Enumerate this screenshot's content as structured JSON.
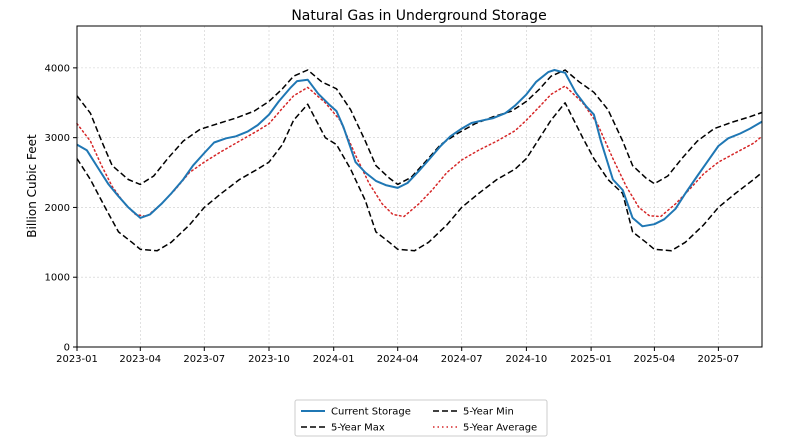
{
  "chart_data": {
    "type": "line",
    "title": "Natural Gas in Underground Storage",
    "xlabel": "",
    "ylabel": "Billion Cubic Feet",
    "ylim": [
      0,
      4600
    ],
    "xlim": [
      "2023-01-01",
      "2025-09-01"
    ],
    "grid": true,
    "legend_position": "bottom-center",
    "y_ticks": [
      0,
      1000,
      2000,
      3000,
      4000
    ],
    "x_ticks": [
      "2023-01",
      "2023-04",
      "2023-07",
      "2023-10",
      "2024-01",
      "2024-04",
      "2024-07",
      "2024-10",
      "2025-01",
      "2025-04",
      "2025-07"
    ],
    "series": [
      {
        "name": "Current Storage",
        "color": "#1f77b4",
        "style": "solid",
        "points": [
          [
            "2023-01-01",
            2900
          ],
          [
            "2023-01-15",
            2820
          ],
          [
            "2023-02-01",
            2550
          ],
          [
            "2023-02-15",
            2330
          ],
          [
            "2023-03-01",
            2160
          ],
          [
            "2023-03-15",
            2000
          ],
          [
            "2023-04-01",
            1850
          ],
          [
            "2023-04-15",
            1900
          ],
          [
            "2023-05-01",
            2050
          ],
          [
            "2023-05-15",
            2200
          ],
          [
            "2023-06-01",
            2400
          ],
          [
            "2023-06-15",
            2600
          ],
          [
            "2023-07-01",
            2780
          ],
          [
            "2023-07-15",
            2930
          ],
          [
            "2023-08-01",
            2990
          ],
          [
            "2023-08-15",
            3020
          ],
          [
            "2023-09-01",
            3090
          ],
          [
            "2023-09-15",
            3180
          ],
          [
            "2023-10-01",
            3330
          ],
          [
            "2023-10-15",
            3520
          ],
          [
            "2023-11-01",
            3720
          ],
          [
            "2023-11-10",
            3810
          ],
          [
            "2023-11-25",
            3830
          ],
          [
            "2023-12-10",
            3630
          ],
          [
            "2023-12-25",
            3480
          ],
          [
            "2024-01-05",
            3380
          ],
          [
            "2024-01-15",
            3150
          ],
          [
            "2024-02-01",
            2650
          ],
          [
            "2024-02-15",
            2500
          ],
          [
            "2024-03-01",
            2380
          ],
          [
            "2024-03-15",
            2320
          ],
          [
            "2024-04-01",
            2280
          ],
          [
            "2024-04-15",
            2350
          ],
          [
            "2024-05-01",
            2520
          ],
          [
            "2024-05-15",
            2680
          ],
          [
            "2024-06-01",
            2880
          ],
          [
            "2024-06-15",
            3020
          ],
          [
            "2024-07-01",
            3130
          ],
          [
            "2024-07-15",
            3210
          ],
          [
            "2024-08-01",
            3250
          ],
          [
            "2024-08-15",
            3280
          ],
          [
            "2024-09-01",
            3350
          ],
          [
            "2024-09-15",
            3460
          ],
          [
            "2024-10-01",
            3620
          ],
          [
            "2024-10-15",
            3800
          ],
          [
            "2024-11-01",
            3940
          ],
          [
            "2024-11-10",
            3970
          ],
          [
            "2024-11-25",
            3930
          ],
          [
            "2024-12-10",
            3650
          ],
          [
            "2024-12-25",
            3450
          ],
          [
            "2025-01-05",
            3330
          ],
          [
            "2025-01-15",
            2950
          ],
          [
            "2025-02-01",
            2400
          ],
          [
            "2025-02-15",
            2250
          ],
          [
            "2025-03-01",
            1850
          ],
          [
            "2025-03-15",
            1730
          ],
          [
            "2025-04-01",
            1760
          ],
          [
            "2025-04-15",
            1830
          ],
          [
            "2025-05-01",
            1980
          ],
          [
            "2025-05-15",
            2200
          ],
          [
            "2025-06-01",
            2450
          ],
          [
            "2025-06-15",
            2650
          ],
          [
            "2025-07-01",
            2880
          ],
          [
            "2025-07-15",
            2990
          ],
          [
            "2025-08-01",
            3060
          ],
          [
            "2025-08-15",
            3130
          ],
          [
            "2025-09-01",
            3230
          ]
        ]
      },
      {
        "name": "5-Year Max",
        "color": "#000000",
        "style": "dashed",
        "points": [
          [
            "2023-01-01",
            3600
          ],
          [
            "2023-01-20",
            3350
          ],
          [
            "2023-02-05",
            2950
          ],
          [
            "2023-02-20",
            2600
          ],
          [
            "2023-03-15",
            2400
          ],
          [
            "2023-04-01",
            2330
          ],
          [
            "2023-04-20",
            2450
          ],
          [
            "2023-05-10",
            2700
          ],
          [
            "2023-06-01",
            2950
          ],
          [
            "2023-06-25",
            3120
          ],
          [
            "2023-07-20",
            3200
          ],
          [
            "2023-08-15",
            3280
          ],
          [
            "2023-09-10",
            3380
          ],
          [
            "2023-10-01",
            3520
          ],
          [
            "2023-10-20",
            3700
          ],
          [
            "2023-11-05",
            3880
          ],
          [
            "2023-11-25",
            3970
          ],
          [
            "2023-12-15",
            3800
          ],
          [
            "2024-01-05",
            3700
          ],
          [
            "2024-01-25",
            3400
          ],
          [
            "2024-02-15",
            2950
          ],
          [
            "2024-03-01",
            2600
          ],
          [
            "2024-03-20",
            2420
          ],
          [
            "2024-04-01",
            2330
          ],
          [
            "2024-04-20",
            2430
          ],
          [
            "2024-05-10",
            2650
          ],
          [
            "2024-06-01",
            2900
          ],
          [
            "2024-06-25",
            3060
          ],
          [
            "2024-07-20",
            3200
          ],
          [
            "2024-08-15",
            3300
          ],
          [
            "2024-09-10",
            3380
          ],
          [
            "2024-10-01",
            3520
          ],
          [
            "2024-10-20",
            3700
          ],
          [
            "2024-11-05",
            3880
          ],
          [
            "2024-11-25",
            3970
          ],
          [
            "2024-12-15",
            3800
          ],
          [
            "2025-01-05",
            3650
          ],
          [
            "2025-01-25",
            3400
          ],
          [
            "2025-02-15",
            2950
          ],
          [
            "2025-03-01",
            2600
          ],
          [
            "2025-03-20",
            2420
          ],
          [
            "2025-04-01",
            2340
          ],
          [
            "2025-04-20",
            2450
          ],
          [
            "2025-05-10",
            2700
          ],
          [
            "2025-06-01",
            2950
          ],
          [
            "2025-06-25",
            3130
          ],
          [
            "2025-07-20",
            3220
          ],
          [
            "2025-08-15",
            3300
          ],
          [
            "2025-09-01",
            3360
          ]
        ]
      },
      {
        "name": "5-Year Min",
        "color": "#000000",
        "style": "dashed",
        "points": [
          [
            "2023-01-01",
            2700
          ],
          [
            "2023-01-20",
            2400
          ],
          [
            "2023-02-10",
            2000
          ],
          [
            "2023-03-01",
            1650
          ],
          [
            "2023-03-20",
            1500
          ],
          [
            "2023-04-01",
            1400
          ],
          [
            "2023-04-25",
            1380
          ],
          [
            "2023-05-15",
            1500
          ],
          [
            "2023-06-10",
            1750
          ],
          [
            "2023-07-01",
            2000
          ],
          [
            "2023-07-25",
            2200
          ],
          [
            "2023-08-20",
            2400
          ],
          [
            "2023-09-15",
            2550
          ],
          [
            "2023-10-01",
            2650
          ],
          [
            "2023-10-20",
            2900
          ],
          [
            "2023-11-05",
            3250
          ],
          [
            "2023-11-25",
            3480
          ],
          [
            "2023-12-20",
            3000
          ],
          [
            "2024-01-05",
            2900
          ],
          [
            "2024-01-25",
            2550
          ],
          [
            "2024-02-15",
            2100
          ],
          [
            "2024-03-01",
            1650
          ],
          [
            "2024-03-20",
            1500
          ],
          [
            "2024-04-01",
            1400
          ],
          [
            "2024-04-25",
            1380
          ],
          [
            "2024-05-15",
            1500
          ],
          [
            "2024-06-10",
            1750
          ],
          [
            "2024-07-01",
            2000
          ],
          [
            "2024-07-25",
            2200
          ],
          [
            "2024-08-20",
            2400
          ],
          [
            "2024-09-15",
            2550
          ],
          [
            "2024-10-01",
            2700
          ],
          [
            "2024-10-20",
            3000
          ],
          [
            "2024-11-05",
            3250
          ],
          [
            "2024-11-25",
            3500
          ],
          [
            "2024-12-20",
            3000
          ],
          [
            "2025-01-05",
            2700
          ],
          [
            "2025-01-25",
            2400
          ],
          [
            "2025-02-15",
            2200
          ],
          [
            "2025-03-01",
            1650
          ],
          [
            "2025-03-20",
            1500
          ],
          [
            "2025-04-01",
            1400
          ],
          [
            "2025-04-25",
            1380
          ],
          [
            "2025-05-15",
            1500
          ],
          [
            "2025-06-10",
            1750
          ],
          [
            "2025-07-01",
            2000
          ],
          [
            "2025-07-25",
            2200
          ],
          [
            "2025-08-20",
            2400
          ],
          [
            "2025-09-01",
            2500
          ]
        ]
      },
      {
        "name": "5-Year Average",
        "color": "#d62728",
        "style": "dotted",
        "points": [
          [
            "2023-01-01",
            3200
          ],
          [
            "2023-01-20",
            2950
          ],
          [
            "2023-02-05",
            2600
          ],
          [
            "2023-02-20",
            2300
          ],
          [
            "2023-03-10",
            2050
          ],
          [
            "2023-03-25",
            1900
          ],
          [
            "2023-04-10",
            1870
          ],
          [
            "2023-05-01",
            2050
          ],
          [
            "2023-05-20",
            2250
          ],
          [
            "2023-06-10",
            2500
          ],
          [
            "2023-07-01",
            2650
          ],
          [
            "2023-07-25",
            2800
          ],
          [
            "2023-08-20",
            2950
          ],
          [
            "2023-09-15",
            3100
          ],
          [
            "2023-10-01",
            3200
          ],
          [
            "2023-10-20",
            3420
          ],
          [
            "2023-11-05",
            3600
          ],
          [
            "2023-11-25",
            3720
          ],
          [
            "2023-12-20",
            3500
          ],
          [
            "2024-01-10",
            3250
          ],
          [
            "2024-02-01",
            2750
          ],
          [
            "2024-02-20",
            2350
          ],
          [
            "2024-03-10",
            2050
          ],
          [
            "2024-03-25",
            1900
          ],
          [
            "2024-04-10",
            1870
          ],
          [
            "2024-05-01",
            2050
          ],
          [
            "2024-05-20",
            2250
          ],
          [
            "2024-06-10",
            2500
          ],
          [
            "2024-07-01",
            2680
          ],
          [
            "2024-07-25",
            2820
          ],
          [
            "2024-08-20",
            2950
          ],
          [
            "2024-09-15",
            3100
          ],
          [
            "2024-10-01",
            3250
          ],
          [
            "2024-10-20",
            3450
          ],
          [
            "2024-11-05",
            3620
          ],
          [
            "2024-11-25",
            3740
          ],
          [
            "2024-12-20",
            3500
          ],
          [
            "2025-01-10",
            3200
          ],
          [
            "2025-02-01",
            2700
          ],
          [
            "2025-02-20",
            2300
          ],
          [
            "2025-03-10",
            2000
          ],
          [
            "2025-03-25",
            1880
          ],
          [
            "2025-04-10",
            1870
          ],
          [
            "2025-05-01",
            2050
          ],
          [
            "2025-05-20",
            2250
          ],
          [
            "2025-06-10",
            2480
          ],
          [
            "2025-07-01",
            2650
          ],
          [
            "2025-07-25",
            2780
          ],
          [
            "2025-08-20",
            2920
          ],
          [
            "2025-09-01",
            3020
          ]
        ]
      }
    ],
    "legend_items": [
      {
        "label": "Current Storage",
        "color": "#1f77b4",
        "style": "solid"
      },
      {
        "label": "5-Year Min",
        "color": "#000000",
        "style": "dashed"
      },
      {
        "label": "5-Year Max",
        "color": "#000000",
        "style": "dashed"
      },
      {
        "label": "5-Year Average",
        "color": "#d62728",
        "style": "dotted"
      }
    ]
  }
}
